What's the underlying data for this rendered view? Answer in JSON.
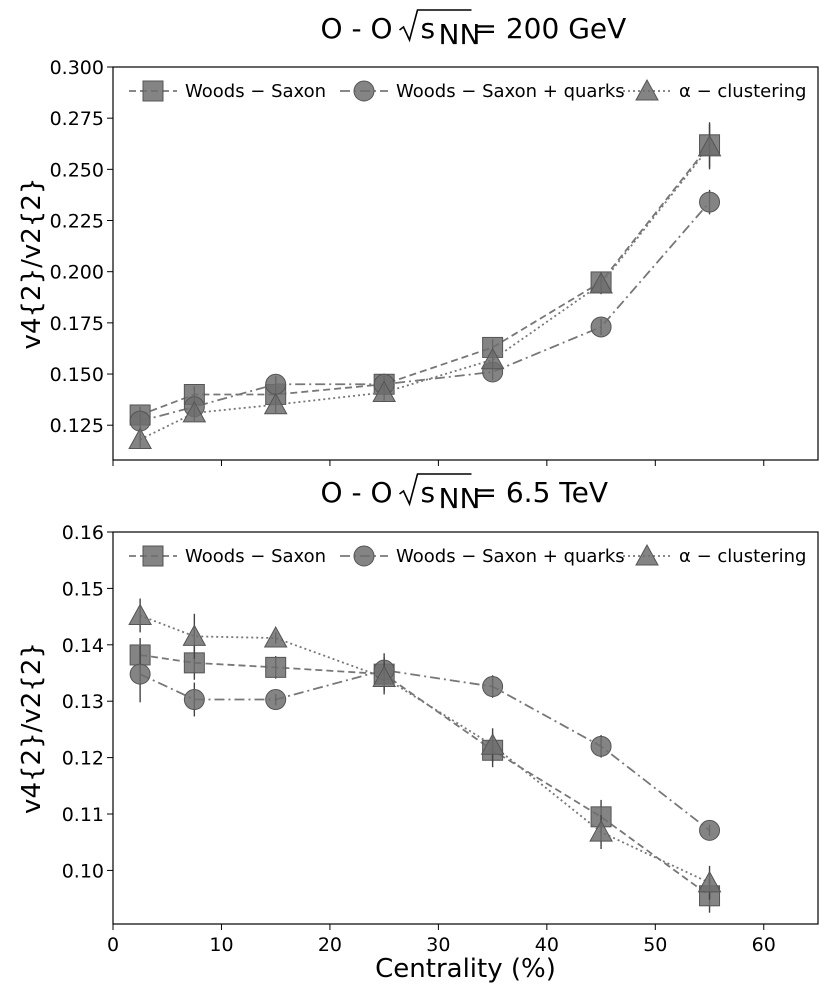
{
  "chart_data": [
    {
      "type": "line",
      "title_prefix": "O - O",
      "title_sqrt": "s",
      "title_sub": "NN",
      "title_suffix": "= 200 GeV",
      "xlabel": "",
      "ylabel": "v4{2}/v2{2}",
      "xlim": [
        0,
        65
      ],
      "ylim": [
        0.108,
        0.3
      ],
      "yticks": [
        "0.125",
        "0.150",
        "0.175",
        "0.200",
        "0.225",
        "0.250",
        "0.275",
        "0.300"
      ],
      "legend_position": "top",
      "series": [
        {
          "name": "Woods − Saxon",
          "marker": "square",
          "dash": "dashed",
          "x": [
            2.5,
            7.5,
            15,
            25,
            35,
            45,
            55
          ],
          "y": [
            0.13,
            0.14,
            0.14,
            0.145,
            0.163,
            0.195,
            0.262
          ],
          "err": [
            0.004,
            0.004,
            0.004,
            0.004,
            0.004,
            0.005,
            0.011
          ]
        },
        {
          "name": "Woods − Saxon + quarks",
          "marker": "circle",
          "dash": "dashdot",
          "x": [
            2.5,
            7.5,
            15,
            25,
            35,
            45,
            55
          ],
          "y": [
            0.127,
            0.134,
            0.145,
            0.145,
            0.151,
            0.173,
            0.234
          ],
          "err": [
            0.004,
            0.004,
            0.004,
            0.004,
            0.004,
            0.004,
            0.006
          ]
        },
        {
          "name": "α − clustering",
          "marker": "triangle",
          "dash": "dotted",
          "x": [
            2.5,
            7.5,
            15,
            25,
            35,
            45,
            55
          ],
          "y": [
            0.118,
            0.131,
            0.135,
            0.141,
            0.157,
            0.194,
            0.261
          ],
          "err": [
            0.004,
            0.004,
            0.004,
            0.004,
            0.004,
            0.005,
            0.011
          ]
        }
      ]
    },
    {
      "type": "line",
      "title_prefix": "O - O",
      "title_sqrt": "s",
      "title_sub": "NN",
      "title_suffix": "= 6.5 TeV",
      "xlabel": "Centrality (%)",
      "ylabel": "v4{2}/v2{2}",
      "xlim": [
        0,
        65
      ],
      "ylim": [
        0.0905,
        0.16
      ],
      "xticks": [
        "0",
        "10",
        "20",
        "30",
        "40",
        "50",
        "60"
      ],
      "yticks": [
        "0.10",
        "0.11",
        "0.12",
        "0.13",
        "0.14",
        "0.15",
        "0.16"
      ],
      "legend_position": "top",
      "series": [
        {
          "name": "Woods − Saxon",
          "marker": "square",
          "dash": "dashed",
          "x": [
            2.5,
            7.5,
            15,
            25,
            35,
            45,
            55
          ],
          "y": [
            0.1382,
            0.1368,
            0.136,
            0.1348,
            0.1213,
            0.1095,
            0.0955
          ],
          "err": [
            0.003,
            0.003,
            0.002,
            0.003,
            0.003,
            0.003,
            0.003
          ]
        },
        {
          "name": "Woods − Saxon + quarks",
          "marker": "circle",
          "dash": "dashdot",
          "x": [
            2.5,
            7.5,
            15,
            25,
            35,
            45,
            55
          ],
          "y": [
            0.1348,
            0.1303,
            0.1303,
            0.1355,
            0.1326,
            0.122,
            0.1071
          ],
          "err": [
            0.005,
            0.003,
            0.001,
            0.003,
            0.002,
            0.002,
            0.001
          ]
        },
        {
          "name": "α − clustering",
          "marker": "triangle",
          "dash": "dotted",
          "x": [
            2.5,
            7.5,
            15,
            25,
            35,
            45,
            55
          ],
          "y": [
            0.1452,
            0.1415,
            0.1412,
            0.1342,
            0.1222,
            0.1068,
            0.0978
          ],
          "err": [
            0.003,
            0.004,
            0.001,
            0.003,
            0.003,
            0.003,
            0.003
          ]
        }
      ]
    }
  ]
}
